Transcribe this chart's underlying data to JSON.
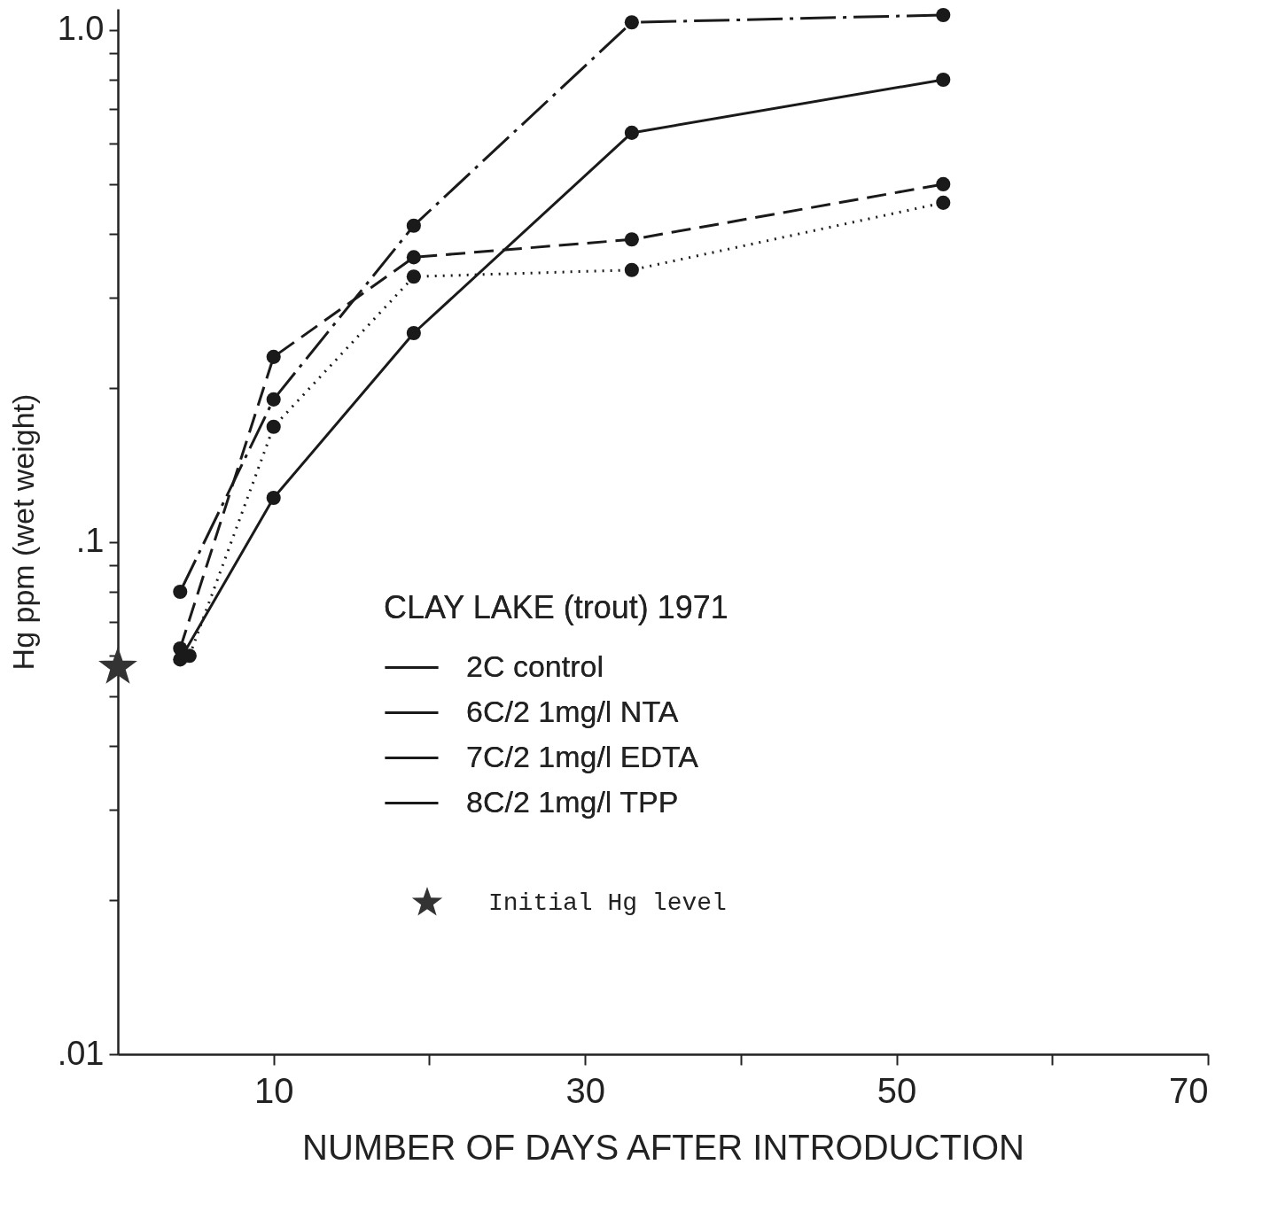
{
  "chart_data": {
    "type": "line",
    "xlabel": "NUMBER  OF  DAYS  AFTER  INTRODUCTION",
    "ylabel": "Hg ppm (wet weight)",
    "legend_title": "CLAY LAKE (trout) 1971",
    "log": "y",
    "legend": "center",
    "marker": "circle",
    "xlim": [
      0,
      70
    ],
    "xticks": [
      10,
      {
        "value": 20,
        "label": null
      },
      30,
      {
        "value": 40,
        "label": null
      },
      50,
      {
        "value": 60,
        "label": null
      },
      70
    ],
    "ylim": [
      0.01,
      1.1
    ],
    "yticks": [
      {
        "value": 0.01,
        "label": ".01"
      },
      {
        "value": 0.02,
        "label": null
      },
      {
        "value": 0.03,
        "label": null
      },
      {
        "value": 0.04,
        "label": null
      },
      {
        "value": 0.05,
        "label": null
      },
      {
        "value": 0.06,
        "label": null
      },
      {
        "value": 0.07,
        "label": null
      },
      {
        "value": 0.08,
        "label": null
      },
      {
        "value": 0.09,
        "label": null
      },
      {
        "value": 0.1,
        "label": ".1"
      },
      {
        "value": 0.2,
        "label": null
      },
      {
        "value": 0.3,
        "label": null
      },
      {
        "value": 0.4,
        "label": null
      },
      {
        "value": 0.5,
        "label": null
      },
      {
        "value": 0.6,
        "label": null
      },
      {
        "value": 0.7,
        "label": null
      },
      {
        "value": 0.8,
        "label": null
      },
      {
        "value": 0.9,
        "label": null
      },
      {
        "value": 1,
        "label": "1.0"
      }
    ],
    "series": [
      {
        "name": "2C  control",
        "color": "#1a1a1a",
        "line_style": "solid",
        "x": [
          4,
          10,
          19,
          33,
          53
        ],
        "values": [
          0.059,
          0.122,
          0.256,
          0.63,
          0.8
        ]
      },
      {
        "name": "6C/2 1mg/l NTA",
        "color": "#1a1a1a",
        "line_style": "dashed",
        "x": [
          4,
          10,
          19,
          33,
          53
        ],
        "values": [
          0.062,
          0.23,
          0.36,
          0.39,
          0.5
        ]
      },
      {
        "name": "7C/2 1mg/l EDTA",
        "color": "#1a1a1a",
        "line_style": "dotted",
        "x": [
          4.6,
          10,
          19,
          33,
          53
        ],
        "values": [
          0.06,
          0.168,
          0.33,
          0.34,
          0.46
        ]
      },
      {
        "name": "8C/2 1mg/l TPP",
        "color": "#1a1a1a",
        "line_style": "dashdot",
        "x": [
          4,
          10,
          19,
          33,
          53
        ],
        "values": [
          0.08,
          0.19,
          0.415,
          1.035,
          1.07
        ]
      },
      {
        "name": "Initial Hg level",
        "color": "#333333",
        "type": "scatter",
        "marker": "star",
        "x": [
          0
        ],
        "values": [
          0.057
        ]
      }
    ]
  }
}
